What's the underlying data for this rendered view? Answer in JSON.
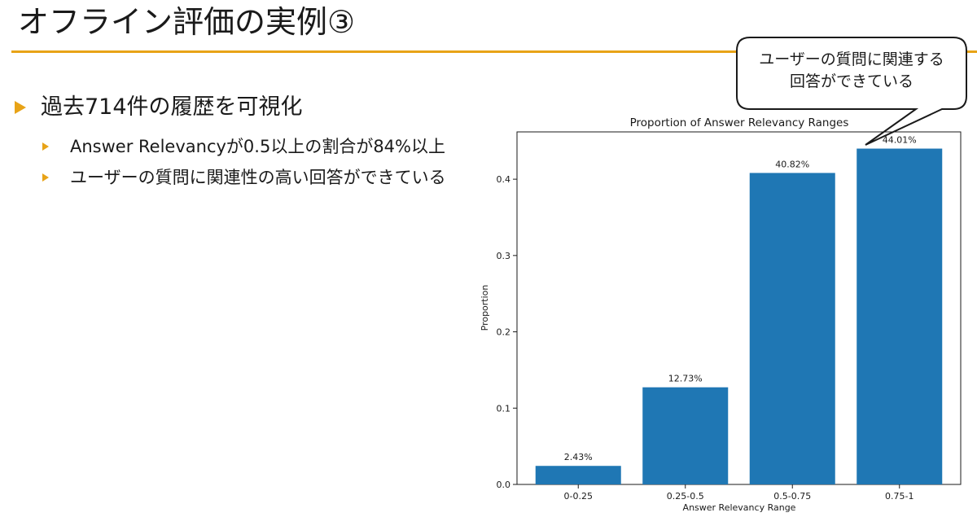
{
  "slide": {
    "title": "オフライン評価の実例③",
    "bullets": [
      {
        "text": "過去714件の履歴を可視化",
        "children": [
          {
            "text": "Answer Relevancyが0.5以上の割合が84%以上"
          },
          {
            "text": "ユーザーの質問に関連性の高い回答ができている"
          }
        ]
      }
    ],
    "callout": {
      "lines": [
        "ユーザーの質問に関連する",
        "回答ができている"
      ]
    },
    "accent_color": "#e8a317"
  },
  "chart_data": {
    "type": "bar",
    "title": "Proportion of Answer Relevancy Ranges",
    "xlabel": "Answer Relevancy Range",
    "ylabel": "Proportion",
    "categories": [
      "0-0.25",
      "0.25-0.5",
      "0.5-0.75",
      "0.75-1"
    ],
    "values": [
      0.0243,
      0.1273,
      0.4082,
      0.4401
    ],
    "data_labels": [
      "2.43%",
      "12.73%",
      "40.82%",
      "44.01%"
    ],
    "yticks": [
      "0.0",
      "0.1",
      "0.2",
      "0.3",
      "0.4"
    ],
    "ylim": [
      0,
      0.462
    ],
    "bar_color": "#1f77b4",
    "grid": false
  }
}
